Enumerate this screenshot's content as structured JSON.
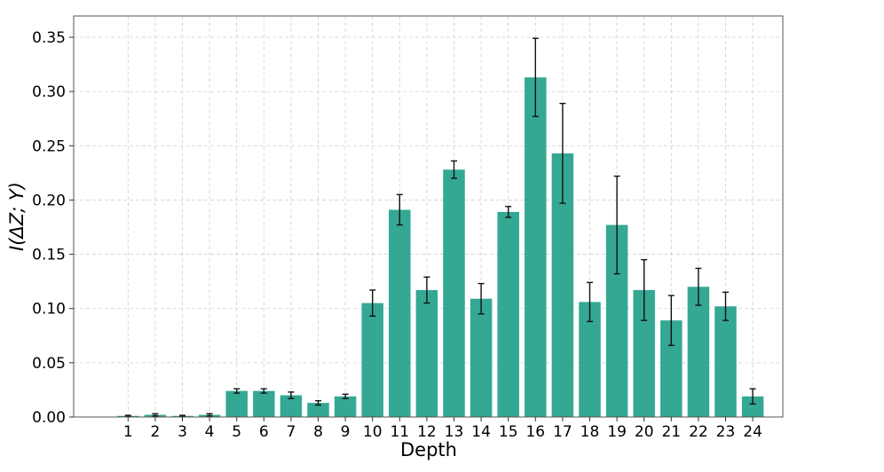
{
  "chart_data": {
    "type": "bar",
    "title": "",
    "xlabel": "Depth",
    "ylabel": "I(ΔZ; Y)",
    "ylim": [
      0,
      0.35
    ],
    "yticks": [
      "0.00",
      "0.05",
      "0.10",
      "0.15",
      "0.20",
      "0.25",
      "0.30",
      "0.35"
    ],
    "grid": true,
    "bar_color": "#34a893",
    "categories": [
      "1",
      "2",
      "3",
      "4",
      "5",
      "6",
      "7",
      "8",
      "9",
      "10",
      "11",
      "12",
      "13",
      "14",
      "15",
      "16",
      "17",
      "18",
      "19",
      "20",
      "21",
      "22",
      "23",
      "24"
    ],
    "values": [
      0.001,
      0.002,
      0.001,
      0.002,
      0.024,
      0.024,
      0.02,
      0.013,
      0.019,
      0.105,
      0.191,
      0.117,
      0.228,
      0.109,
      0.189,
      0.313,
      0.243,
      0.106,
      0.177,
      0.117,
      0.089,
      0.12,
      0.102,
      0.019
    ],
    "errors": [
      0.0005,
      0.001,
      0.0005,
      0.001,
      0.002,
      0.002,
      0.003,
      0.002,
      0.002,
      0.012,
      0.014,
      0.012,
      0.008,
      0.014,
      0.005,
      0.036,
      0.046,
      0.018,
      0.045,
      0.028,
      0.023,
      0.017,
      0.013,
      0.007
    ]
  }
}
